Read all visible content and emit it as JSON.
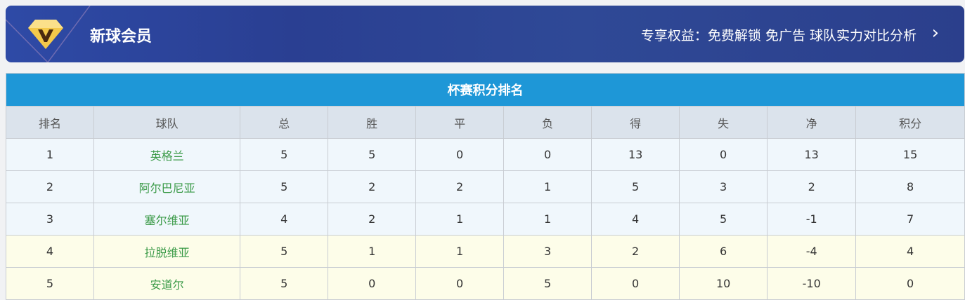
{
  "banner": {
    "title": "新球会员",
    "perks": "专享权益：免费解锁 免广告 球队实力对比分析",
    "chevron_icon": "chevron-right-icon",
    "logo_icon": "diamond-v-icon"
  },
  "table": {
    "title": "杯赛积分排名",
    "headers": [
      "排名",
      "球队",
      "总",
      "胜",
      "平",
      "负",
      "得",
      "失",
      "净",
      "积分"
    ],
    "rows": [
      [
        "1",
        "英格兰",
        "5",
        "5",
        "0",
        "0",
        "13",
        "0",
        "13",
        "15"
      ],
      [
        "2",
        "阿尔巴尼亚",
        "5",
        "2",
        "2",
        "1",
        "5",
        "3",
        "2",
        "8"
      ],
      [
        "3",
        "塞尔维亚",
        "4",
        "2",
        "1",
        "1",
        "4",
        "5",
        "-1",
        "7"
      ],
      [
        "4",
        "拉脱维亚",
        "5",
        "1",
        "1",
        "3",
        "2",
        "6",
        "-4",
        "4"
      ],
      [
        "5",
        "安道尔",
        "5",
        "0",
        "0",
        "5",
        "0",
        "10",
        "-10",
        "0"
      ]
    ],
    "row_colors": {
      "top": "#f0f7fc",
      "bottom": "#fdfde9"
    },
    "team_color": "#3a9a47",
    "title_bar_color": "#1e97d7"
  }
}
